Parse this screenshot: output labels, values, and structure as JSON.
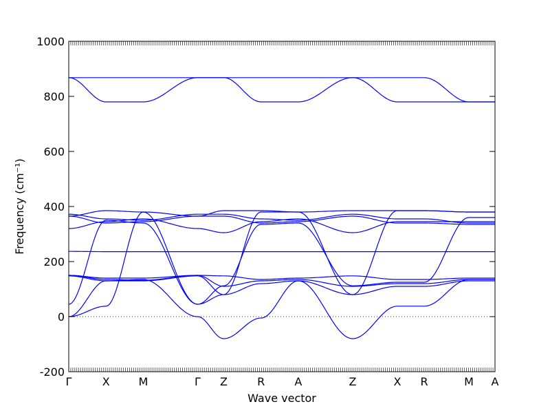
{
  "chart_data": {
    "type": "line",
    "xlabel": "Wave vector",
    "ylabel": "Frequency (cm⁻¹)",
    "ylim": [
      -200,
      1000
    ],
    "yticks": [
      -200,
      0,
      200,
      400,
      600,
      800,
      1000
    ],
    "path_labels": [
      "Γ",
      "X",
      "M",
      "Γ",
      "Z",
      "R",
      "A",
      "Z",
      "X",
      "R",
      "M",
      "A"
    ],
    "path_positions": [
      0,
      0.5,
      1.0,
      1.73,
      2.08,
      2.58,
      3.08,
      3.81,
      4.41,
      4.77,
      5.37,
      5.72
    ],
    "zero_line": {
      "value": 0,
      "style": "dotted"
    },
    "grid": false,
    "legend": "none",
    "series": [
      {
        "values": [
          [
            0,
            868
          ],
          [
            0.5,
            868
          ],
          [
            1.0,
            868
          ],
          [
            1.73,
            868
          ],
          [
            2.08,
            868
          ],
          [
            2.58,
            868
          ],
          [
            3.08,
            868
          ],
          [
            3.81,
            868
          ],
          [
            4.41,
            868
          ],
          [
            4.77,
            868
          ],
          [
            5.37,
            780
          ],
          [
            5.72,
            780
          ]
        ]
      },
      {
        "values": [
          [
            0,
            868
          ],
          [
            0.5,
            780
          ],
          [
            1.0,
            780
          ],
          [
            1.73,
            868
          ],
          [
            2.08,
            868
          ],
          [
            2.58,
            780
          ],
          [
            3.08,
            780
          ],
          [
            3.81,
            868
          ],
          [
            4.41,
            780
          ],
          [
            4.77,
            780
          ],
          [
            5.37,
            780
          ],
          [
            5.72,
            780
          ]
        ]
      },
      {
        "values": [
          [
            0,
            372
          ],
          [
            0.5,
            355
          ],
          [
            1.0,
            350
          ],
          [
            1.73,
            372
          ],
          [
            2.08,
            372
          ],
          [
            2.58,
            355
          ],
          [
            3.08,
            350
          ],
          [
            3.81,
            372
          ],
          [
            4.41,
            355
          ],
          [
            4.77,
            355
          ],
          [
            5.37,
            340
          ],
          [
            5.72,
            340
          ]
        ]
      },
      {
        "values": [
          [
            0,
            320
          ],
          [
            0.5,
            345
          ],
          [
            1.0,
            355
          ],
          [
            1.73,
            320
          ],
          [
            2.08,
            305
          ],
          [
            2.58,
            345
          ],
          [
            3.08,
            355
          ],
          [
            3.81,
            305
          ],
          [
            4.41,
            345
          ],
          [
            4.77,
            345
          ],
          [
            5.37,
            345
          ],
          [
            5.72,
            345
          ]
        ]
      },
      {
        "values": [
          [
            0,
            365
          ],
          [
            0.5,
            385
          ],
          [
            1.0,
            380
          ],
          [
            1.73,
            365
          ],
          [
            2.08,
            385
          ],
          [
            2.58,
            385
          ],
          [
            3.08,
            380
          ],
          [
            3.81,
            385
          ],
          [
            4.41,
            385
          ],
          [
            4.77,
            385
          ],
          [
            5.37,
            380
          ],
          [
            5.72,
            380
          ]
        ]
      },
      {
        "values": [
          [
            0,
            365
          ],
          [
            0.5,
            340
          ],
          [
            1.0,
            345
          ],
          [
            1.73,
            365
          ],
          [
            2.08,
            365
          ],
          [
            2.58,
            340
          ],
          [
            3.08,
            345
          ],
          [
            3.81,
            365
          ],
          [
            4.41,
            340
          ],
          [
            4.77,
            340
          ],
          [
            5.37,
            335
          ],
          [
            5.72,
            335
          ]
        ]
      },
      {
        "values": [
          [
            0,
            237
          ],
          [
            0.5,
            236
          ],
          [
            1.0,
            236
          ],
          [
            1.73,
            236
          ],
          [
            2.08,
            236
          ],
          [
            2.58,
            236
          ],
          [
            3.08,
            236
          ],
          [
            3.81,
            236
          ],
          [
            4.41,
            236
          ],
          [
            4.77,
            236
          ],
          [
            5.37,
            236
          ],
          [
            5.72,
            236
          ]
        ]
      },
      {
        "values": [
          [
            0,
            150
          ],
          [
            0.5,
            140
          ],
          [
            1.0,
            140
          ],
          [
            1.73,
            150
          ],
          [
            2.08,
            148
          ],
          [
            2.58,
            135
          ],
          [
            3.08,
            140
          ],
          [
            3.81,
            148
          ],
          [
            4.41,
            135
          ],
          [
            4.77,
            135
          ],
          [
            5.37,
            140
          ],
          [
            5.72,
            140
          ]
        ]
      },
      {
        "values": [
          [
            0,
            150
          ],
          [
            0.5,
            135
          ],
          [
            1.0,
            132
          ],
          [
            1.73,
            150
          ],
          [
            2.08,
            110
          ],
          [
            2.58,
            130
          ],
          [
            3.08,
            135
          ],
          [
            3.81,
            110
          ],
          [
            4.41,
            120
          ],
          [
            4.77,
            120
          ],
          [
            5.37,
            135
          ],
          [
            5.72,
            135
          ]
        ]
      },
      {
        "values": [
          [
            0,
            148
          ],
          [
            0.5,
            130
          ],
          [
            1.0,
            130
          ],
          [
            1.73,
            148
          ],
          [
            2.08,
            80
          ],
          [
            2.58,
            120
          ],
          [
            3.08,
            130
          ],
          [
            3.81,
            80
          ],
          [
            4.41,
            110
          ],
          [
            4.77,
            110
          ],
          [
            5.37,
            130
          ],
          [
            5.72,
            130
          ]
        ]
      },
      {
        "values": [
          [
            0,
            0
          ],
          [
            0.5,
            130
          ],
          [
            1.0,
            135
          ],
          [
            1.73,
            0
          ],
          [
            2.08,
            -80
          ],
          [
            2.58,
            -5
          ],
          [
            3.08,
            130
          ],
          [
            3.81,
            -80
          ],
          [
            4.41,
            38
          ],
          [
            4.77,
            38
          ],
          [
            5.37,
            135
          ],
          [
            5.72,
            135
          ]
        ]
      },
      {
        "values": [
          [
            0,
            0
          ],
          [
            0.5,
            38
          ],
          [
            1.0,
            380
          ],
          [
            1.73,
            45
          ],
          [
            2.08,
            80
          ],
          [
            2.58,
            380
          ],
          [
            3.08,
            380
          ],
          [
            3.81,
            80
          ],
          [
            4.41,
            385
          ],
          [
            4.77,
            385
          ],
          [
            5.37,
            380
          ],
          [
            5.72,
            380
          ]
        ]
      },
      {
        "values": [
          [
            0,
            45
          ],
          [
            0.5,
            350
          ],
          [
            1.0,
            340
          ],
          [
            1.73,
            45
          ],
          [
            2.08,
            112
          ],
          [
            2.58,
            335
          ],
          [
            3.08,
            340
          ],
          [
            3.81,
            112
          ],
          [
            4.41,
            125
          ],
          [
            4.77,
            125
          ],
          [
            5.37,
            360
          ],
          [
            5.72,
            360
          ]
        ]
      }
    ]
  }
}
